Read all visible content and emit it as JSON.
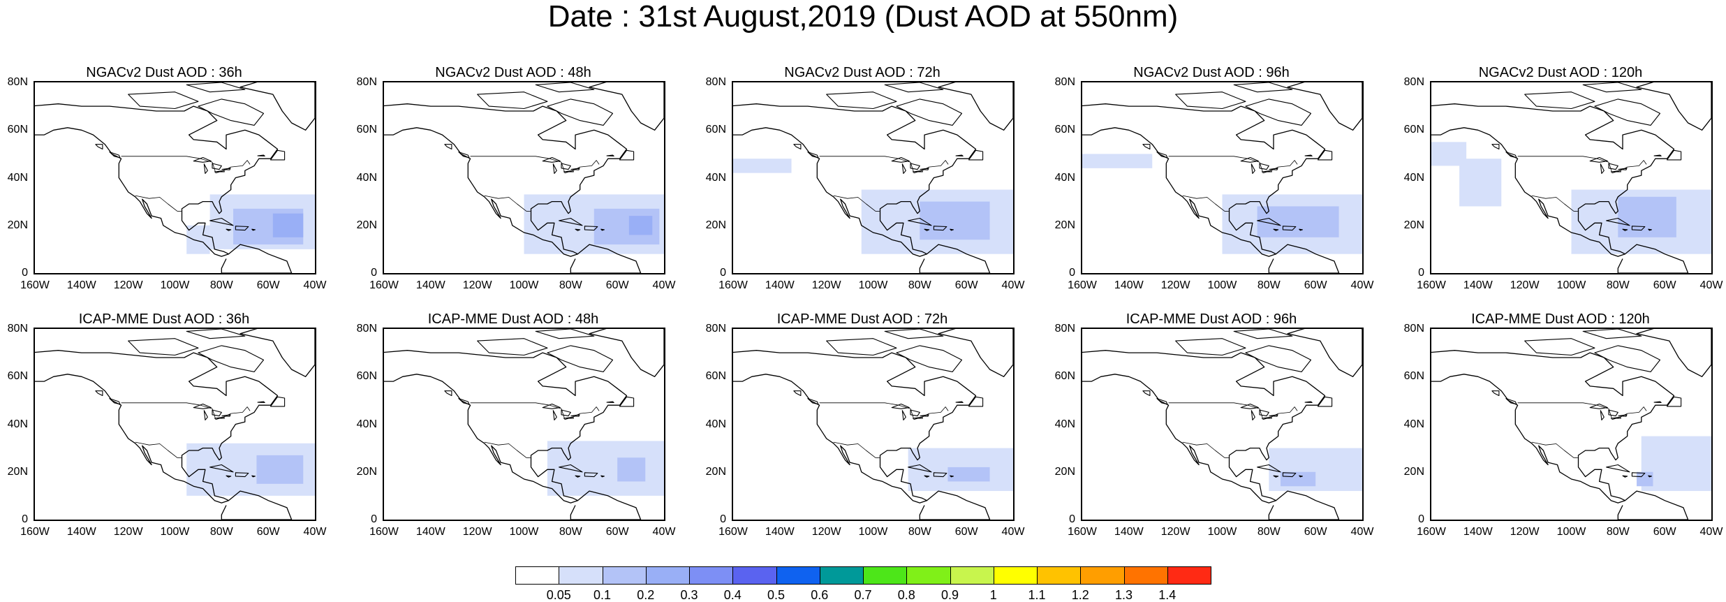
{
  "title": "Date : 31st August,2019 (Dust AOD at 550nm)",
  "lat_ticks": [
    "80N",
    "60N",
    "40N",
    "20N",
    "0"
  ],
  "lon_ticks": [
    "160W",
    "140W",
    "120W",
    "100W",
    "80W",
    "60W",
    "40W"
  ],
  "lat_range": [
    0,
    80
  ],
  "lon_range": [
    -160,
    -40
  ],
  "panels": [
    {
      "title": "NGACv2 Dust AOD : 36h",
      "dust": [
        {
          "lon": [
            -85,
            -40
          ],
          "lat": [
            10,
            33
          ],
          "level": 0
        },
        {
          "lon": [
            -95,
            -85
          ],
          "lat": [
            8,
            20
          ],
          "level": 0
        },
        {
          "lon": [
            -75,
            -45
          ],
          "lat": [
            12,
            27
          ],
          "level": 1
        },
        {
          "lon": [
            -58,
            -45
          ],
          "lat": [
            15,
            25
          ],
          "level": 2
        }
      ]
    },
    {
      "title": "NGACv2 Dust AOD : 48h",
      "dust": [
        {
          "lon": [
            -100,
            -40
          ],
          "lat": [
            8,
            33
          ],
          "level": 0
        },
        {
          "lon": [
            -70,
            -42
          ],
          "lat": [
            12,
            27
          ],
          "level": 1
        },
        {
          "lon": [
            -55,
            -45
          ],
          "lat": [
            16,
            24
          ],
          "level": 2
        }
      ]
    },
    {
      "title": "NGACv2 Dust AOD : 72h",
      "dust": [
        {
          "lon": [
            -160,
            -135
          ],
          "lat": [
            42,
            48
          ],
          "level": 0
        },
        {
          "lon": [
            -105,
            -40
          ],
          "lat": [
            8,
            35
          ],
          "level": 0
        },
        {
          "lon": [
            -80,
            -50
          ],
          "lat": [
            14,
            30
          ],
          "level": 1
        }
      ]
    },
    {
      "title": "NGACv2 Dust AOD : 96h",
      "dust": [
        {
          "lon": [
            -160,
            -130
          ],
          "lat": [
            44,
            50
          ],
          "level": 0
        },
        {
          "lon": [
            -100,
            -40
          ],
          "lat": [
            8,
            33
          ],
          "level": 0
        },
        {
          "lon": [
            -85,
            -50
          ],
          "lat": [
            15,
            28
          ],
          "level": 1
        }
      ]
    },
    {
      "title": "NGACv2 Dust AOD : 120h",
      "dust": [
        {
          "lon": [
            -160,
            -145
          ],
          "lat": [
            45,
            55
          ],
          "level": 0
        },
        {
          "lon": [
            -148,
            -130
          ],
          "lat": [
            28,
            48
          ],
          "level": 0
        },
        {
          "lon": [
            -100,
            -40
          ],
          "lat": [
            8,
            35
          ],
          "level": 0
        },
        {
          "lon": [
            -80,
            -55
          ],
          "lat": [
            15,
            32
          ],
          "level": 1
        }
      ]
    },
    {
      "title": "ICAP-MME Dust AOD : 36h",
      "dust": [
        {
          "lon": [
            -95,
            -40
          ],
          "lat": [
            10,
            32
          ],
          "level": 0
        },
        {
          "lon": [
            -65,
            -45
          ],
          "lat": [
            15,
            27
          ],
          "level": 1
        }
      ]
    },
    {
      "title": "ICAP-MME Dust AOD : 48h",
      "dust": [
        {
          "lon": [
            -90,
            -40
          ],
          "lat": [
            10,
            33
          ],
          "level": 0
        },
        {
          "lon": [
            -60,
            -48
          ],
          "lat": [
            16,
            26
          ],
          "level": 1
        }
      ]
    },
    {
      "title": "ICAP-MME Dust AOD : 72h",
      "dust": [
        {
          "lon": [
            -85,
            -40
          ],
          "lat": [
            12,
            30
          ],
          "level": 0
        },
        {
          "lon": [
            -68,
            -50
          ],
          "lat": [
            16,
            22
          ],
          "level": 1
        }
      ]
    },
    {
      "title": "ICAP-MME Dust AOD : 96h",
      "dust": [
        {
          "lon": [
            -80,
            -40
          ],
          "lat": [
            12,
            30
          ],
          "level": 0
        },
        {
          "lon": [
            -75,
            -60
          ],
          "lat": [
            14,
            20
          ],
          "level": 1
        }
      ]
    },
    {
      "title": "ICAP-MME Dust AOD : 120h",
      "dust": [
        {
          "lon": [
            -70,
            -40
          ],
          "lat": [
            12,
            35
          ],
          "level": 0
        },
        {
          "lon": [
            -72,
            -65
          ],
          "lat": [
            14,
            20
          ],
          "level": 1
        }
      ]
    }
  ],
  "colorbar": {
    "colors": [
      "#ffffff",
      "#d6e0fa",
      "#b3c3f7",
      "#99aff6",
      "#7d8ff5",
      "#5a63f0",
      "#0f62f0",
      "#009999",
      "#4de619",
      "#80f018",
      "#c8f54d",
      "#ffff00",
      "#ffc200",
      "#ff9e00",
      "#ff7300",
      "#ff2a14"
    ],
    "labels": [
      "0.05",
      "0.1",
      "0.2",
      "0.3",
      "0.4",
      "0.5",
      "0.6",
      "0.7",
      "0.8",
      "0.9",
      "1",
      "1.1",
      "1.2",
      "1.3",
      "1.4"
    ]
  }
}
